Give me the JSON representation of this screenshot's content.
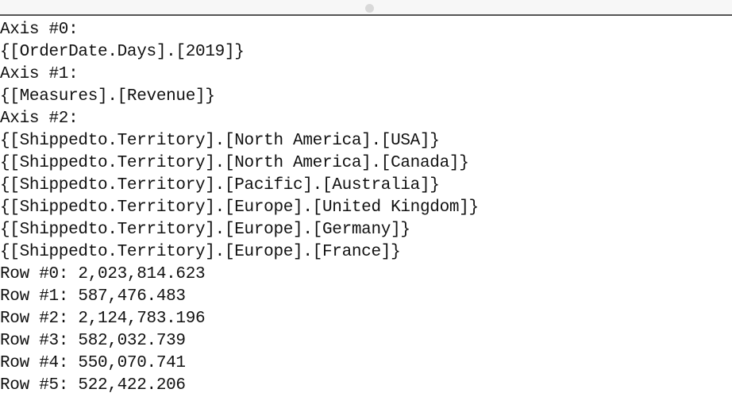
{
  "result_output": {
    "lines": [
      "Axis #0:",
      "{[OrderDate.Days].[2019]}",
      "Axis #1:",
      "{[Measures].[Revenue]}",
      "Axis #2:",
      "{[Shippedto.Territory].[North America].[USA]}",
      "{[Shippedto.Territory].[North America].[Canada]}",
      "{[Shippedto.Territory].[Pacific].[Australia]}",
      "{[Shippedto.Territory].[Europe].[United Kingdom]}",
      "{[Shippedto.Territory].[Europe].[Germany]}",
      "{[Shippedto.Territory].[Europe].[France]}",
      "Row #0: 2,023,814.623",
      "Row #1: 587,476.483",
      "Row #2: 2,124,783.196",
      "Row #3: 582,032.739",
      "Row #4: 550,070.741",
      "Row #5: 522,422.206"
    ]
  }
}
